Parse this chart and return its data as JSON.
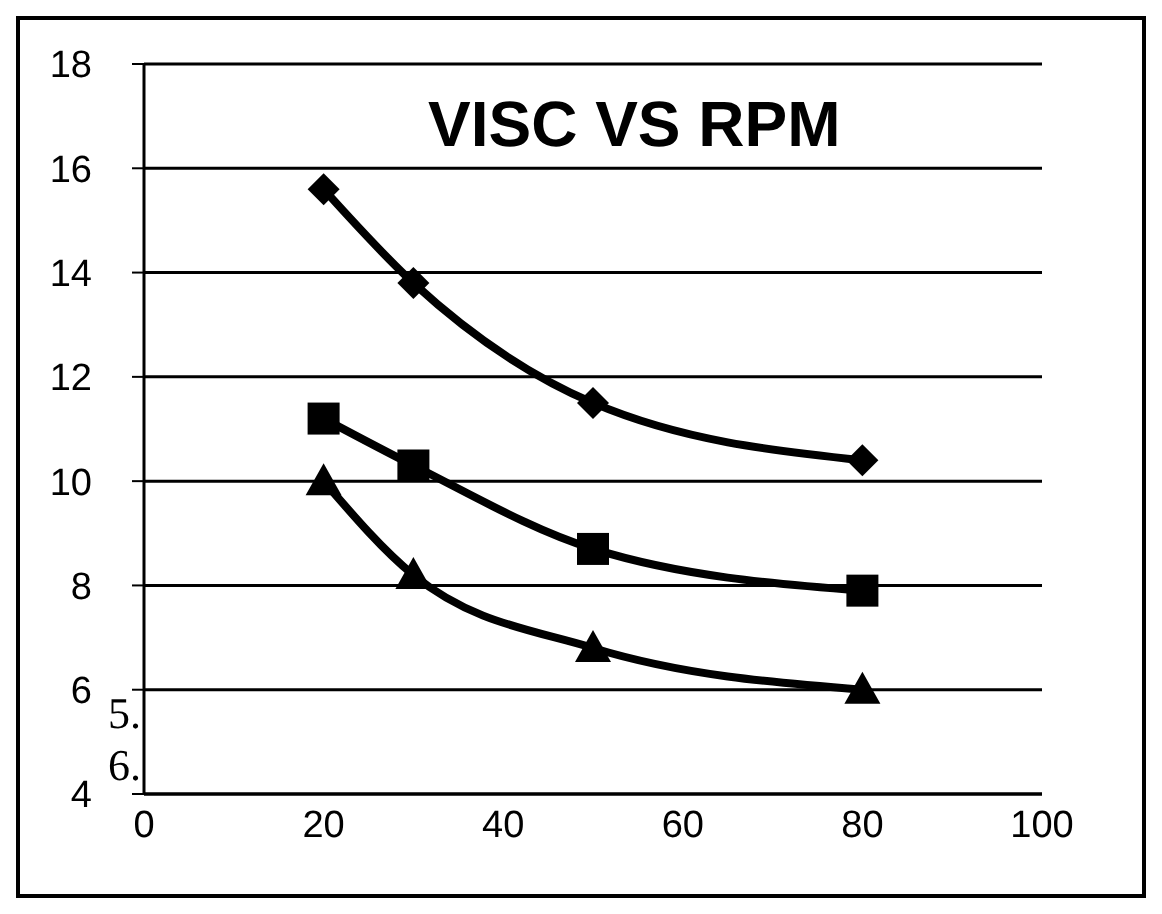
{
  "chart_data": {
    "type": "line",
    "title": "VISC VS RPM",
    "x": [
      20,
      30,
      50,
      80
    ],
    "series": [
      {
        "color": "#000000",
        "marker": "diamond",
        "values": [
          15.6,
          13.8,
          11.5,
          10.4
        ]
      },
      {
        "color": "#000000",
        "marker": "square",
        "values": [
          11.2,
          10.3,
          8.7,
          7.9
        ]
      },
      {
        "color": "#000000",
        "marker": "triangle",
        "values": [
          10.0,
          8.2,
          6.8,
          6.0
        ]
      }
    ],
    "xlim": [
      0,
      100
    ],
    "xticks": [
      0,
      20,
      40,
      60,
      80,
      100
    ],
    "ylim": [
      4,
      18
    ],
    "yticks": [
      4,
      6,
      8,
      10,
      12,
      14,
      16,
      18
    ],
    "grid": "y",
    "line_style": "solid",
    "annotations": [
      "5.",
      "6."
    ]
  }
}
